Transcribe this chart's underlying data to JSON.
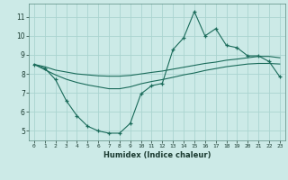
{
  "xlabel": "Humidex (Indice chaleur)",
  "background_color": "#cceae7",
  "grid_color": "#aad4d0",
  "line_color": "#1a6b5a",
  "xlim": [
    -0.5,
    23.5
  ],
  "ylim": [
    4.5,
    11.7
  ],
  "xticks": [
    0,
    1,
    2,
    3,
    4,
    5,
    6,
    7,
    8,
    9,
    10,
    11,
    12,
    13,
    14,
    15,
    16,
    17,
    18,
    19,
    20,
    21,
    22,
    23
  ],
  "yticks": [
    5,
    6,
    7,
    8,
    9,
    10,
    11
  ],
  "series1_x": [
    0,
    1,
    2,
    3,
    4,
    5,
    6,
    7,
    8,
    9,
    10,
    11,
    12,
    13,
    14,
    15,
    16,
    17,
    18,
    19,
    20,
    21,
    22,
    23
  ],
  "series1_y": [
    8.5,
    8.3,
    7.7,
    6.6,
    5.8,
    5.25,
    5.0,
    4.88,
    4.88,
    5.4,
    6.95,
    7.38,
    7.5,
    9.28,
    9.9,
    11.28,
    10.0,
    10.38,
    9.5,
    9.38,
    8.95,
    8.95,
    8.65,
    7.85
  ],
  "series2_x": [
    0,
    1,
    2,
    3,
    4,
    5,
    6,
    7,
    8,
    9,
    10,
    11,
    12,
    13,
    14,
    15,
    16,
    17,
    18,
    19,
    20,
    21,
    22,
    23
  ],
  "series2_y": [
    8.5,
    8.38,
    8.2,
    8.1,
    8.0,
    7.95,
    7.9,
    7.88,
    7.88,
    7.92,
    8.0,
    8.08,
    8.15,
    8.25,
    8.35,
    8.45,
    8.55,
    8.62,
    8.72,
    8.78,
    8.85,
    8.92,
    8.92,
    8.85
  ],
  "series3_x": [
    0,
    1,
    2,
    3,
    4,
    5,
    6,
    7,
    8,
    9,
    10,
    11,
    12,
    13,
    14,
    15,
    16,
    17,
    18,
    19,
    20,
    21,
    22,
    23
  ],
  "series3_y": [
    8.5,
    8.22,
    7.95,
    7.72,
    7.55,
    7.42,
    7.32,
    7.22,
    7.22,
    7.32,
    7.48,
    7.6,
    7.7,
    7.82,
    7.95,
    8.05,
    8.18,
    8.28,
    8.38,
    8.45,
    8.52,
    8.55,
    8.55,
    8.52
  ]
}
